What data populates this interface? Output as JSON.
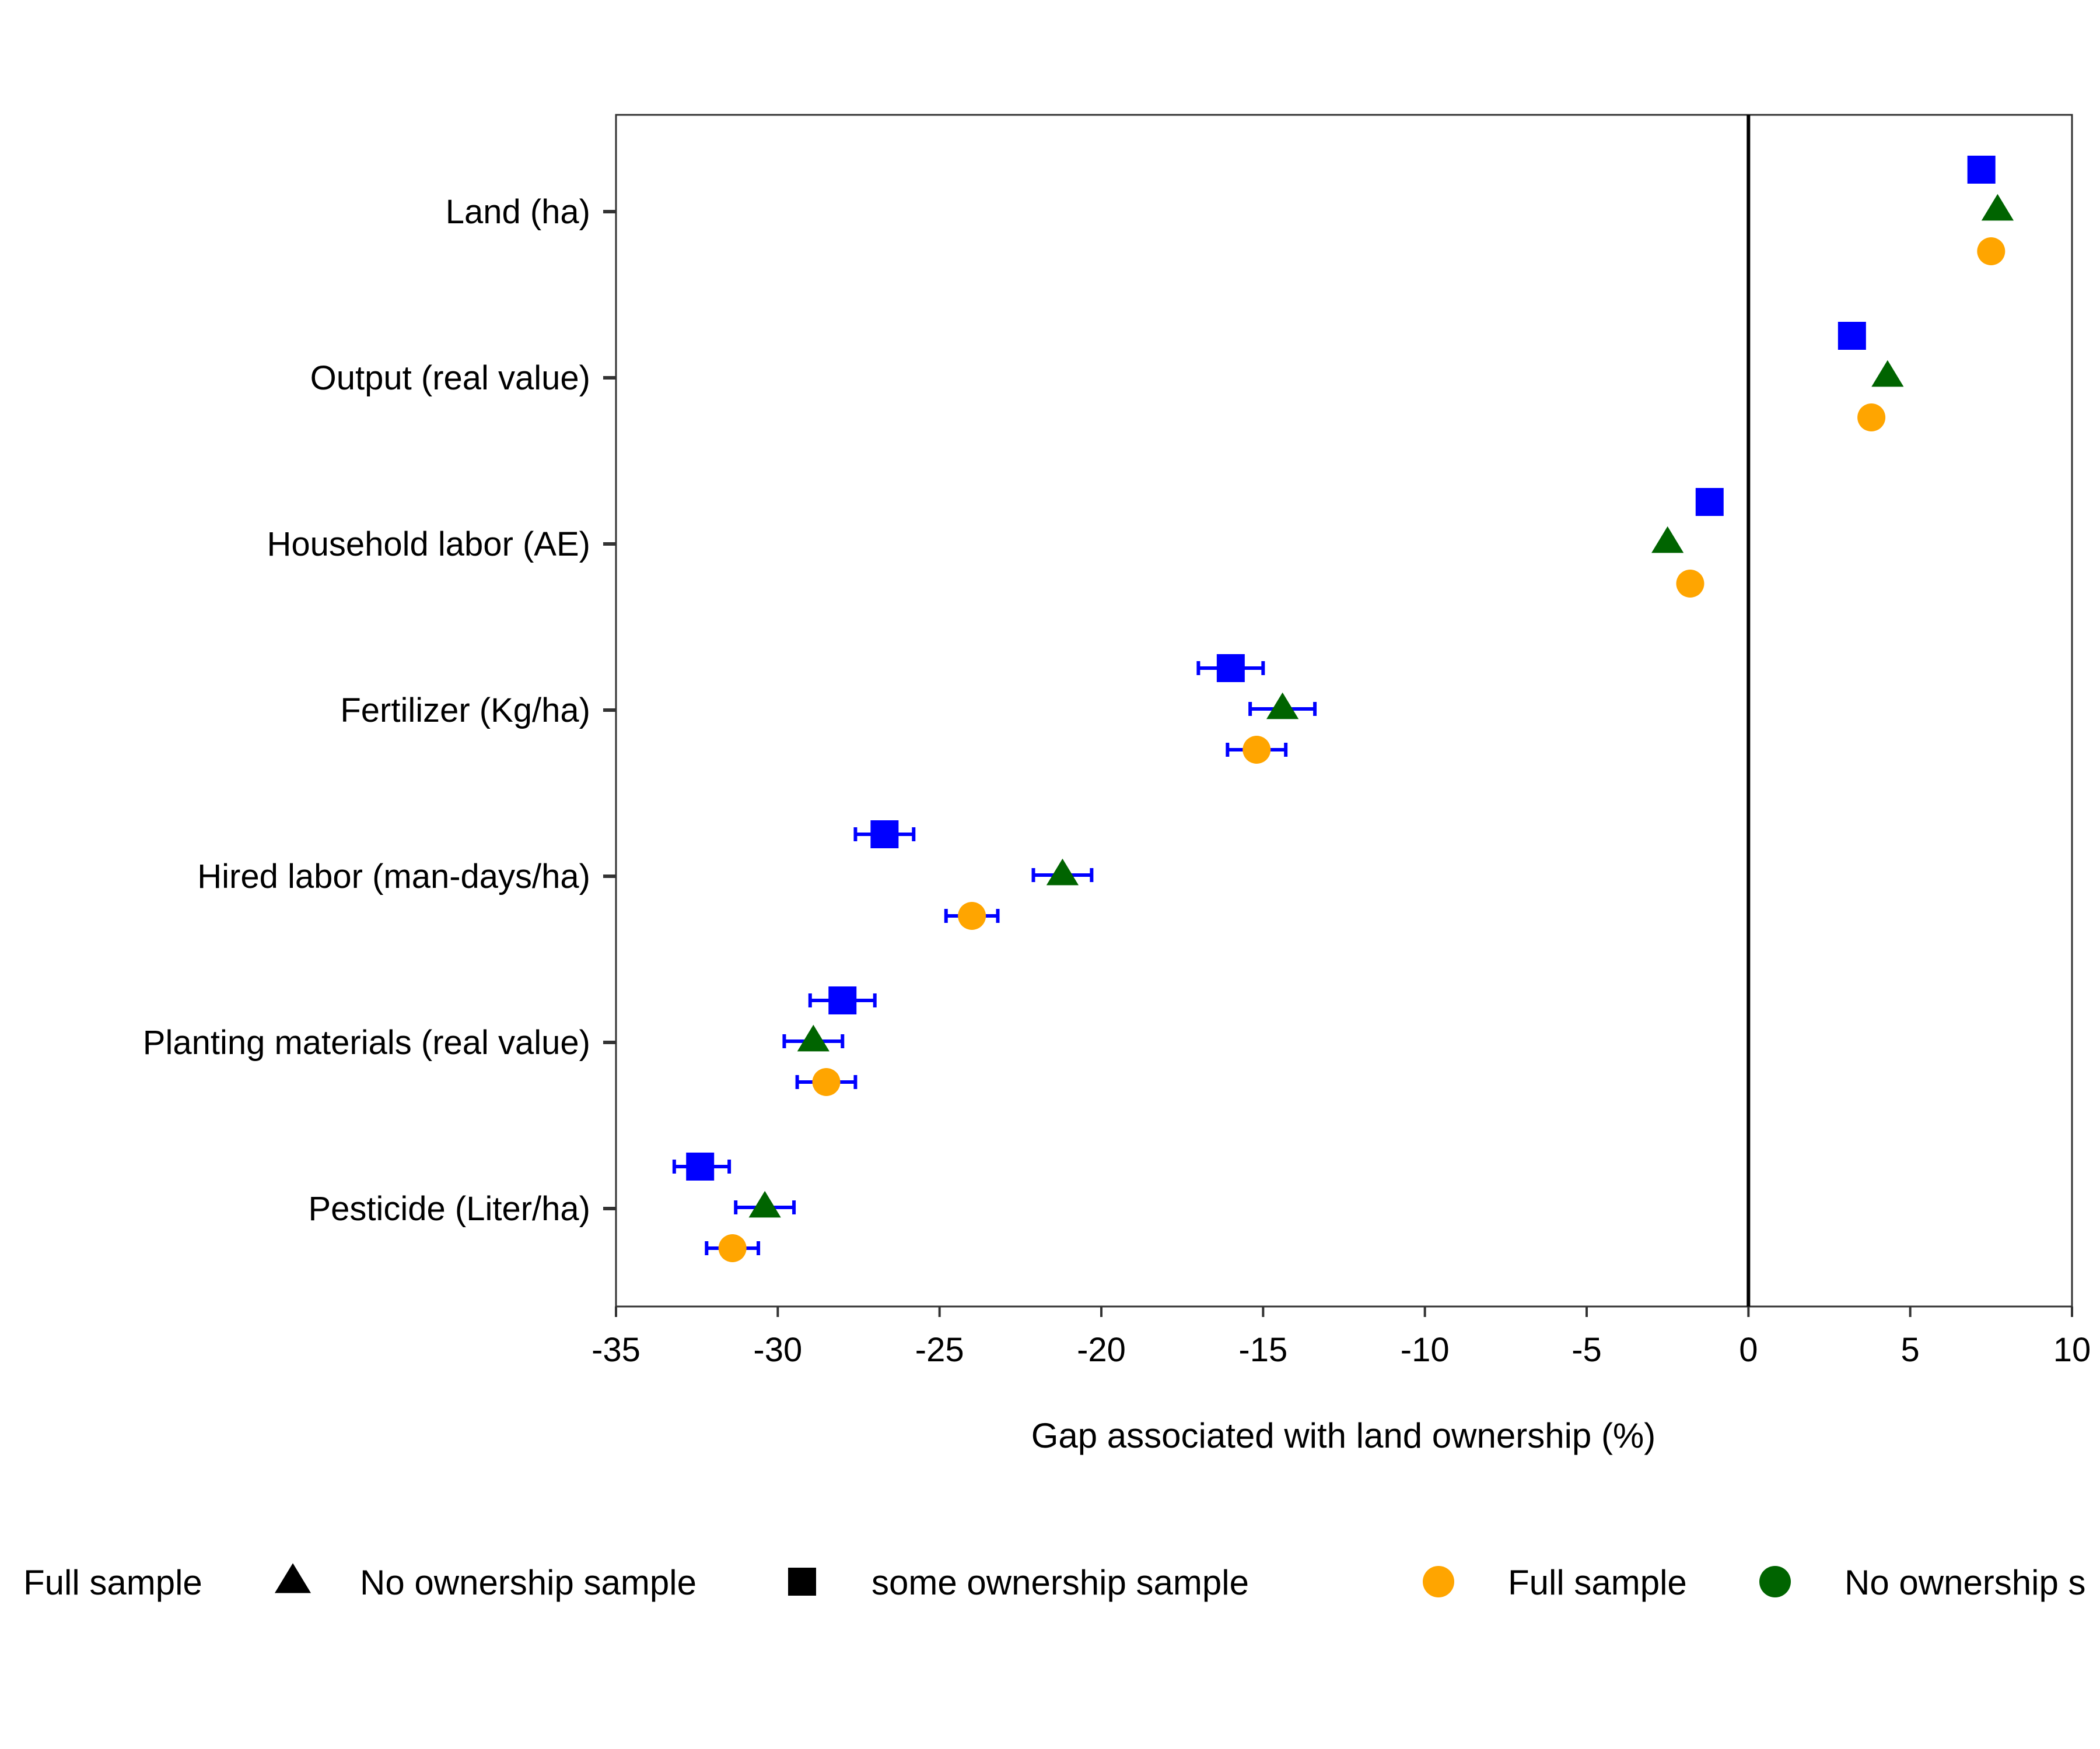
{
  "chart_data": {
    "type": "scatter",
    "title": "",
    "xlabel": "Gap associated with land ownership (%)",
    "ylabel": "",
    "xlim": [
      -35,
      10
    ],
    "x_ticks": [
      -35,
      -30,
      -25,
      -20,
      -15,
      -10,
      -5,
      0,
      5,
      10
    ],
    "x_tick_labels": [
      "-35",
      "-30",
      "-25",
      "-20",
      "-15",
      "-10",
      "-5",
      "0",
      "5",
      "10"
    ],
    "grid": false,
    "reference_line_x": 0,
    "legend_position": "bottom",
    "categories": [
      "Land (ha)",
      "Output (real value)",
      "Household labor (AE)",
      "Fertilizer (Kg/ha)",
      "Hired labor (man-days/ha)",
      "Planting materials (real value)",
      "Pesticide (Liter/ha)"
    ],
    "series": [
      {
        "name": "some ownership sample",
        "marker": "square",
        "color": "#0000ff",
        "values": [
          7.2,
          3.2,
          -1.2,
          -16.0,
          -26.7,
          -28.0,
          -32.4
        ],
        "ci_low": [
          null,
          null,
          null,
          -17.0,
          -27.6,
          -29.0,
          -33.2
        ],
        "ci_high": [
          null,
          null,
          null,
          -15.0,
          -25.8,
          -27.0,
          -31.5
        ]
      },
      {
        "name": "No ownership sample",
        "marker": "triangle",
        "color": "#006400",
        "values": [
          7.7,
          4.3,
          -2.5,
          -14.4,
          -21.2,
          -28.9,
          -30.4
        ],
        "ci_low": [
          null,
          null,
          null,
          -15.4,
          -22.1,
          -29.8,
          -31.3
        ],
        "ci_high": [
          null,
          null,
          null,
          -13.4,
          -20.3,
          -28.0,
          -29.5
        ]
      },
      {
        "name": "Full sample",
        "marker": "circle",
        "color": "#ffa500",
        "values": [
          7.5,
          3.8,
          -1.8,
          -15.2,
          -24.0,
          -28.5,
          -31.4
        ],
        "ci_low": [
          null,
          null,
          null,
          -16.1,
          -24.8,
          -29.4,
          -32.2
        ],
        "ci_high": [
          null,
          null,
          null,
          -14.3,
          -23.2,
          -27.6,
          -30.6
        ]
      }
    ],
    "error_bar_color": "#0000ff",
    "legend_shape": {
      "title": "Full sample",
      "items": [
        {
          "label": "No ownership sample",
          "marker": "triangle",
          "color": "#000000"
        },
        {
          "label": "some ownership sample",
          "marker": "square",
          "color": "#000000"
        }
      ]
    },
    "legend_color": {
      "items": [
        {
          "label": "Full sample",
          "marker": "circle",
          "color": "#ffa500"
        },
        {
          "label": "No ownership s",
          "marker": "circle",
          "color": "#006400"
        }
      ]
    }
  }
}
